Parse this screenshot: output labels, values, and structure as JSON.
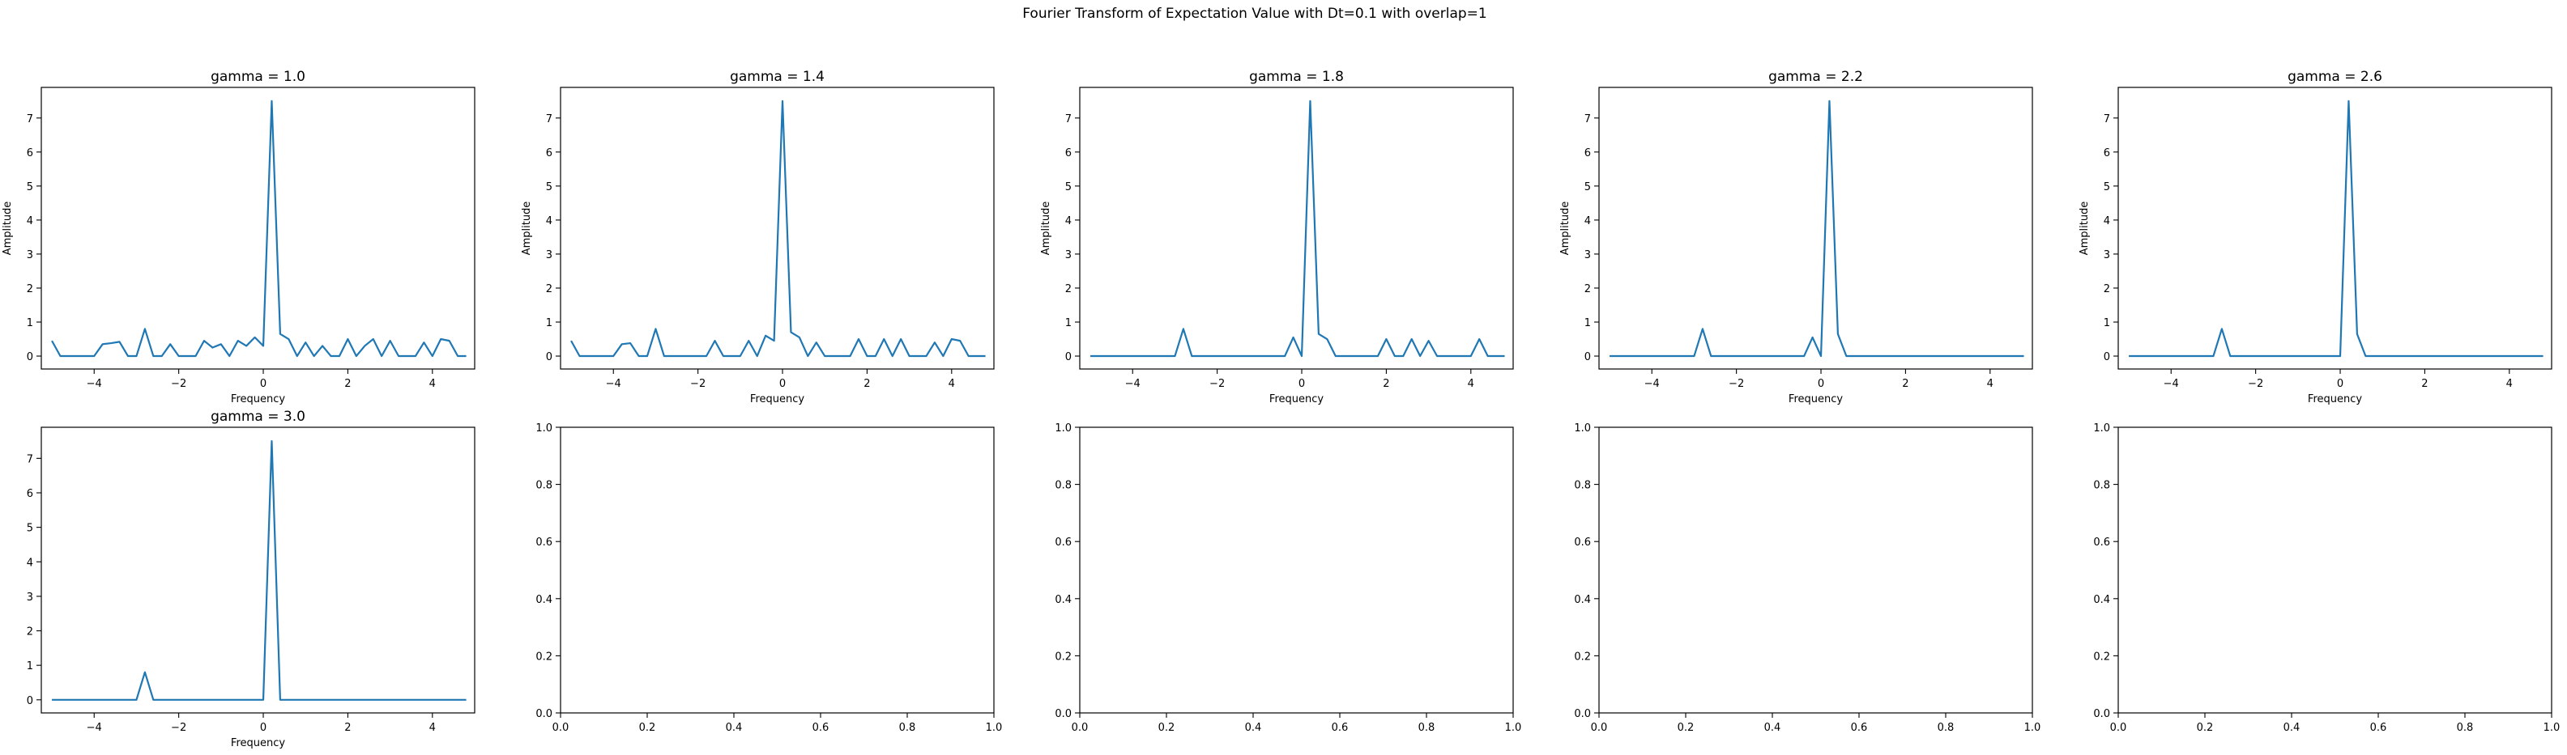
{
  "figure": {
    "suptitle": "Fourier Transform of Expectation Value with Dt=0.1 with overlap=1"
  },
  "colors": {
    "line": "#1f77b4",
    "axes": "#000000",
    "background": "#ffffff"
  },
  "chart_data": [
    {
      "type": "line",
      "title": "gamma = 1.0",
      "xlabel": "Frequency",
      "ylabel": "Amplitude",
      "xlim": [
        -5.25,
        5.0
      ],
      "ylim": [
        -0.38,
        7.9
      ],
      "xticks": [
        "-4",
        "-2",
        "0",
        "2",
        "4"
      ],
      "yticks": [
        "0",
        "1",
        "2",
        "3",
        "4",
        "5",
        "6",
        "7"
      ],
      "x": [
        -5.0,
        -4.8,
        -4.6,
        -4.4,
        -4.2,
        -4.0,
        -3.8,
        -3.6,
        -3.4,
        -3.2,
        -3.0,
        -2.8,
        -2.6,
        -2.4,
        -2.2,
        -2.0,
        -1.8,
        -1.6,
        -1.4,
        -1.2,
        -1.0,
        -0.8,
        -0.6,
        -0.4,
        -0.2,
        0.0,
        0.2,
        0.4,
        0.6,
        0.8,
        1.0,
        1.2,
        1.4,
        1.6,
        1.8,
        2.0,
        2.2,
        2.4,
        2.6,
        2.8,
        3.0,
        3.2,
        3.4,
        3.6,
        3.8,
        4.0,
        4.2,
        4.4,
        4.6,
        4.8
      ],
      "series": [
        {
          "values": [
            0.45,
            0.0,
            0.0,
            0.0,
            0.0,
            0.0,
            0.35,
            0.38,
            0.42,
            0.0,
            0.0,
            0.8,
            0.0,
            0.0,
            0.35,
            0.0,
            0.0,
            0.0,
            0.45,
            0.25,
            0.35,
            0.0,
            0.45,
            0.3,
            0.55,
            0.3,
            7.5,
            0.65,
            0.5,
            0.0,
            0.4,
            0.0,
            0.3,
            0.0,
            0.0,
            0.5,
            0.0,
            0.3,
            0.5,
            0.0,
            0.45,
            0.0,
            0.0,
            0.0,
            0.4,
            0.0,
            0.5,
            0.45,
            0.0,
            0.0
          ]
        }
      ]
    },
    {
      "type": "line",
      "title": "gamma = 1.4",
      "xlabel": "Frequency",
      "ylabel": "Amplitude",
      "xlim": [
        -5.25,
        5.0
      ],
      "ylim": [
        -0.38,
        7.9
      ],
      "xticks": [
        "-4",
        "-2",
        "0",
        "2",
        "4"
      ],
      "yticks": [
        "0",
        "1",
        "2",
        "3",
        "4",
        "5",
        "6",
        "7"
      ],
      "x": [
        -5.0,
        -4.8,
        -4.6,
        -4.4,
        -4.2,
        -4.0,
        -3.8,
        -3.6,
        -3.4,
        -3.2,
        -3.0,
        -2.8,
        -2.6,
        -2.4,
        -2.2,
        -2.0,
        -1.8,
        -1.6,
        -1.4,
        -1.2,
        -1.0,
        -0.8,
        -0.6,
        -0.4,
        -0.2,
        0.0,
        0.2,
        0.4,
        0.6,
        0.8,
        1.0,
        1.2,
        1.4,
        1.6,
        1.8,
        2.0,
        2.2,
        2.4,
        2.6,
        2.8,
        3.0,
        3.2,
        3.4,
        3.6,
        3.8,
        4.0,
        4.2,
        4.4,
        4.6,
        4.8
      ],
      "series": [
        {
          "values": [
            0.45,
            0.0,
            0.0,
            0.0,
            0.0,
            0.0,
            0.35,
            0.38,
            0.0,
            0.0,
            0.8,
            0.0,
            0.0,
            0.0,
            0.0,
            0.0,
            0.0,
            0.45,
            0.0,
            0.0,
            0.0,
            0.45,
            0.0,
            0.6,
            0.45,
            7.5,
            0.7,
            0.55,
            0.0,
            0.4,
            0.0,
            0.0,
            0.0,
            0.0,
            0.5,
            0.0,
            0.0,
            0.5,
            0.0,
            0.5,
            0.0,
            0.0,
            0.0,
            0.4,
            0.0,
            0.5,
            0.45,
            0.0,
            0.0,
            0.0
          ]
        }
      ]
    },
    {
      "type": "line",
      "title": "gamma = 1.8",
      "xlabel": "Frequency",
      "ylabel": "Amplitude",
      "xlim": [
        -5.25,
        5.0
      ],
      "ylim": [
        -0.38,
        7.9
      ],
      "xticks": [
        "-4",
        "-2",
        "0",
        "2",
        "4"
      ],
      "yticks": [
        "0",
        "1",
        "2",
        "3",
        "4",
        "5",
        "6",
        "7"
      ],
      "x": [
        -5.0,
        -4.8,
        -4.6,
        -4.4,
        -4.2,
        -4.0,
        -3.8,
        -3.6,
        -3.4,
        -3.2,
        -3.0,
        -2.8,
        -2.6,
        -2.4,
        -2.2,
        -2.0,
        -1.8,
        -1.6,
        -1.4,
        -1.2,
        -1.0,
        -0.8,
        -0.6,
        -0.4,
        -0.2,
        0.0,
        0.2,
        0.4,
        0.6,
        0.8,
        1.0,
        1.2,
        1.4,
        1.6,
        1.8,
        2.0,
        2.2,
        2.4,
        2.6,
        2.8,
        3.0,
        3.2,
        3.4,
        3.6,
        3.8,
        4.0,
        4.2,
        4.4,
        4.6,
        4.8
      ],
      "series": [
        {
          "values": [
            0.0,
            0.0,
            0.0,
            0.0,
            0.0,
            0.0,
            0.0,
            0.0,
            0.0,
            0.0,
            0.0,
            0.8,
            0.0,
            0.0,
            0.0,
            0.0,
            0.0,
            0.0,
            0.0,
            0.0,
            0.0,
            0.0,
            0.0,
            0.0,
            0.55,
            0.0,
            7.5,
            0.65,
            0.5,
            0.0,
            0.0,
            0.0,
            0.0,
            0.0,
            0.0,
            0.5,
            0.0,
            0.0,
            0.5,
            0.0,
            0.45,
            0.0,
            0.0,
            0.0,
            0.0,
            0.0,
            0.5,
            0.0,
            0.0,
            0.0
          ]
        }
      ]
    },
    {
      "type": "line",
      "title": "gamma = 2.2",
      "xlabel": "Frequency",
      "ylabel": "Amplitude",
      "xlim": [
        -5.25,
        5.0
      ],
      "ylim": [
        -0.38,
        7.9
      ],
      "xticks": [
        "-4",
        "-2",
        "0",
        "2",
        "4"
      ],
      "yticks": [
        "0",
        "1",
        "2",
        "3",
        "4",
        "5",
        "6",
        "7"
      ],
      "x": [
        -5.0,
        -4.8,
        -4.6,
        -4.4,
        -4.2,
        -4.0,
        -3.8,
        -3.6,
        -3.4,
        -3.2,
        -3.0,
        -2.8,
        -2.6,
        -2.4,
        -2.2,
        -2.0,
        -1.8,
        -1.6,
        -1.4,
        -1.2,
        -1.0,
        -0.8,
        -0.6,
        -0.4,
        -0.2,
        0.0,
        0.2,
        0.4,
        0.6,
        0.8,
        1.0,
        1.2,
        1.4,
        1.6,
        1.8,
        2.0,
        2.2,
        2.4,
        2.6,
        2.8,
        3.0,
        3.2,
        3.4,
        3.6,
        3.8,
        4.0,
        4.2,
        4.4,
        4.6,
        4.8
      ],
      "series": [
        {
          "values": [
            0.0,
            0.0,
            0.0,
            0.0,
            0.0,
            0.0,
            0.0,
            0.0,
            0.0,
            0.0,
            0.0,
            0.8,
            0.0,
            0.0,
            0.0,
            0.0,
            0.0,
            0.0,
            0.0,
            0.0,
            0.0,
            0.0,
            0.0,
            0.0,
            0.55,
            0.0,
            7.5,
            0.65,
            0.0,
            0.0,
            0.0,
            0.0,
            0.0,
            0.0,
            0.0,
            0.0,
            0.0,
            0.0,
            0.0,
            0.0,
            0.0,
            0.0,
            0.0,
            0.0,
            0.0,
            0.0,
            0.0,
            0.0,
            0.0,
            0.0
          ]
        }
      ]
    },
    {
      "type": "line",
      "title": "gamma = 2.6",
      "xlabel": "Frequency",
      "ylabel": "Amplitude",
      "xlim": [
        -5.25,
        5.0
      ],
      "ylim": [
        -0.38,
        7.9
      ],
      "xticks": [
        "-4",
        "-2",
        "0",
        "2",
        "4"
      ],
      "yticks": [
        "0",
        "1",
        "2",
        "3",
        "4",
        "5",
        "6",
        "7"
      ],
      "x": [
        -5.0,
        -4.8,
        -4.6,
        -4.4,
        -4.2,
        -4.0,
        -3.8,
        -3.6,
        -3.4,
        -3.2,
        -3.0,
        -2.8,
        -2.6,
        -2.4,
        -2.2,
        -2.0,
        -1.8,
        -1.6,
        -1.4,
        -1.2,
        -1.0,
        -0.8,
        -0.6,
        -0.4,
        -0.2,
        0.0,
        0.2,
        0.4,
        0.6,
        0.8,
        1.0,
        1.2,
        1.4,
        1.6,
        1.8,
        2.0,
        2.2,
        2.4,
        2.6,
        2.8,
        3.0,
        3.2,
        3.4,
        3.6,
        3.8,
        4.0,
        4.2,
        4.4,
        4.6,
        4.8
      ],
      "series": [
        {
          "values": [
            0.0,
            0.0,
            0.0,
            0.0,
            0.0,
            0.0,
            0.0,
            0.0,
            0.0,
            0.0,
            0.0,
            0.8,
            0.0,
            0.0,
            0.0,
            0.0,
            0.0,
            0.0,
            0.0,
            0.0,
            0.0,
            0.0,
            0.0,
            0.0,
            0.0,
            0.0,
            7.5,
            0.65,
            0.0,
            0.0,
            0.0,
            0.0,
            0.0,
            0.0,
            0.0,
            0.0,
            0.0,
            0.0,
            0.0,
            0.0,
            0.0,
            0.0,
            0.0,
            0.0,
            0.0,
            0.0,
            0.0,
            0.0,
            0.0,
            0.0
          ]
        }
      ]
    },
    {
      "type": "line",
      "title": "gamma = 3.0",
      "xlabel": "Frequency",
      "ylabel": "",
      "xlim": [
        -5.25,
        5.0
      ],
      "ylim": [
        -0.38,
        7.9
      ],
      "xticks": [
        "-4",
        "-2",
        "0",
        "2",
        "4"
      ],
      "yticks": [
        "0",
        "1",
        "2",
        "3",
        "4",
        "5",
        "6",
        "7"
      ],
      "x": [
        -5.0,
        -4.8,
        -4.6,
        -4.4,
        -4.2,
        -4.0,
        -3.8,
        -3.6,
        -3.4,
        -3.2,
        -3.0,
        -2.8,
        -2.6,
        -2.4,
        -2.2,
        -2.0,
        -1.8,
        -1.6,
        -1.4,
        -1.2,
        -1.0,
        -0.8,
        -0.6,
        -0.4,
        -0.2,
        0.0,
        0.2,
        0.4,
        0.6,
        0.8,
        1.0,
        1.2,
        1.4,
        1.6,
        1.8,
        2.0,
        2.2,
        2.4,
        2.6,
        2.8,
        3.0,
        3.2,
        3.4,
        3.6,
        3.8,
        4.0,
        4.2,
        4.4,
        4.6,
        4.8
      ],
      "series": [
        {
          "values": [
            0.0,
            0.0,
            0.0,
            0.0,
            0.0,
            0.0,
            0.0,
            0.0,
            0.0,
            0.0,
            0.0,
            0.8,
            0.0,
            0.0,
            0.0,
            0.0,
            0.0,
            0.0,
            0.0,
            0.0,
            0.0,
            0.0,
            0.0,
            0.0,
            0.0,
            0.0,
            7.5,
            0.0,
            0.0,
            0.0,
            0.0,
            0.0,
            0.0,
            0.0,
            0.0,
            0.0,
            0.0,
            0.0,
            0.0,
            0.0,
            0.0,
            0.0,
            0.0,
            0.0,
            0.0,
            0.0,
            0.0,
            0.0,
            0.0,
            0.0
          ]
        }
      ]
    },
    {
      "type": "line",
      "title": "",
      "xlabel": "",
      "ylabel": "",
      "xlim": [
        0,
        1
      ],
      "ylim": [
        0,
        1
      ],
      "xticks": [
        "0.0",
        "0.2",
        "0.4",
        "0.6",
        "0.8",
        "1.0"
      ],
      "yticks": [
        "0.0",
        "0.2",
        "0.4",
        "0.6",
        "0.8",
        "1.0"
      ],
      "x": [],
      "series": []
    },
    {
      "type": "line",
      "title": "",
      "xlabel": "",
      "ylabel": "",
      "xlim": [
        0,
        1
      ],
      "ylim": [
        0,
        1
      ],
      "xticks": [
        "0.0",
        "0.2",
        "0.4",
        "0.6",
        "0.8",
        "1.0"
      ],
      "yticks": [
        "0.0",
        "0.2",
        "0.4",
        "0.6",
        "0.8",
        "1.0"
      ],
      "x": [],
      "series": []
    },
    {
      "type": "line",
      "title": "",
      "xlabel": "",
      "ylabel": "",
      "xlim": [
        0,
        1
      ],
      "ylim": [
        0,
        1
      ],
      "xticks": [
        "0.0",
        "0.2",
        "0.4",
        "0.6",
        "0.8",
        "1.0"
      ],
      "yticks": [
        "0.0",
        "0.2",
        "0.4",
        "0.6",
        "0.8",
        "1.0"
      ],
      "x": [],
      "series": []
    },
    {
      "type": "line",
      "title": "",
      "xlabel": "",
      "ylabel": "",
      "xlim": [
        0,
        1
      ],
      "ylim": [
        0,
        1
      ],
      "xticks": [
        "0.0",
        "0.2",
        "0.4",
        "0.6",
        "0.8",
        "1.0"
      ],
      "yticks": [
        "0.0",
        "0.2",
        "0.4",
        "0.6",
        "0.8",
        "1.0"
      ],
      "x": [],
      "series": []
    }
  ]
}
